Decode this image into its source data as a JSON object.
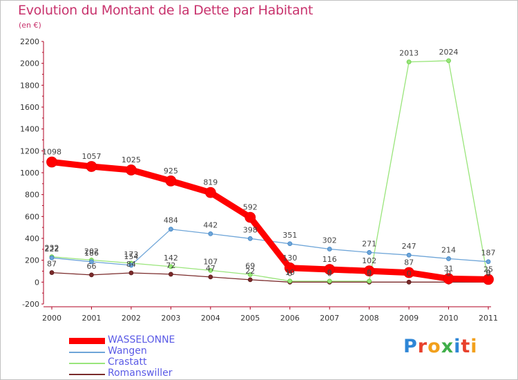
{
  "title": "Evolution du Montant de la Dette par Habitant",
  "unit": "(en €)",
  "logo": {
    "letters": [
      {
        "ch": "P",
        "color": "#2e86d6"
      },
      {
        "ch": "r",
        "color": "#e8412c"
      },
      {
        "ch": "o",
        "color": "#f2a01c"
      },
      {
        "ch": "x",
        "color": "#3fae49"
      },
      {
        "ch": "i",
        "color": "#2e86d6"
      },
      {
        "ch": "t",
        "color": "#e8412c"
      },
      {
        "ch": "i",
        "color": "#f2a01c"
      }
    ]
  },
  "chart_data": {
    "type": "line",
    "x": [
      "2000",
      "2001",
      "2002",
      "2003",
      "2004",
      "2005",
      "2006",
      "2007",
      "2008",
      "2009",
      "2010",
      "2011"
    ],
    "ylim": [
      -200,
      2200
    ],
    "yticks": [
      "-200",
      "0",
      "200",
      "400",
      "600",
      "800",
      "1000",
      "1200",
      "1400",
      "1600",
      "1800",
      "2000",
      "2200"
    ],
    "grid": false,
    "legend_position": "bottom-left",
    "series": [
      {
        "name": "WASSELONNE",
        "color": "#ff0000",
        "values": [
          1098,
          1057,
          1025,
          925,
          819,
          592,
          130,
          116,
          102,
          87,
          31,
          25
        ],
        "labels": [
          "1098",
          "1057",
          "1025",
          "925",
          "819",
          "592",
          "130",
          "116",
          "102",
          "87",
          "31",
          "25"
        ]
      },
      {
        "name": "Wangen",
        "color": "#6ea5d8",
        "values": [
          222,
          186,
          154,
          484,
          442,
          398,
          351,
          302,
          271,
          247,
          214,
          187
        ],
        "labels": [
          "222",
          "186",
          "154",
          "484",
          "442",
          "398",
          "351",
          "302",
          "271",
          "247",
          "214",
          "187"
        ]
      },
      {
        "name": "Crastatt",
        "color": "#99e57a",
        "values": [
          232,
          202,
          173,
          142,
          107,
          69,
          10,
          9,
          9,
          2013,
          2024,
          9
        ],
        "labels": [
          "232",
          "202",
          "173",
          "142",
          "107",
          "69",
          "10",
          "9",
          "9",
          "2013",
          "2024",
          "9"
        ]
      },
      {
        "name": "Romanswiller",
        "color": "#7a2a2a",
        "values": [
          87,
          66,
          84,
          72,
          47,
          22,
          0,
          0,
          0,
          0,
          0,
          0
        ],
        "labels": [
          "87",
          "66",
          "84",
          "72",
          "47",
          "22",
          "0",
          "0",
          "0",
          "0",
          "0",
          "0"
        ]
      }
    ]
  }
}
